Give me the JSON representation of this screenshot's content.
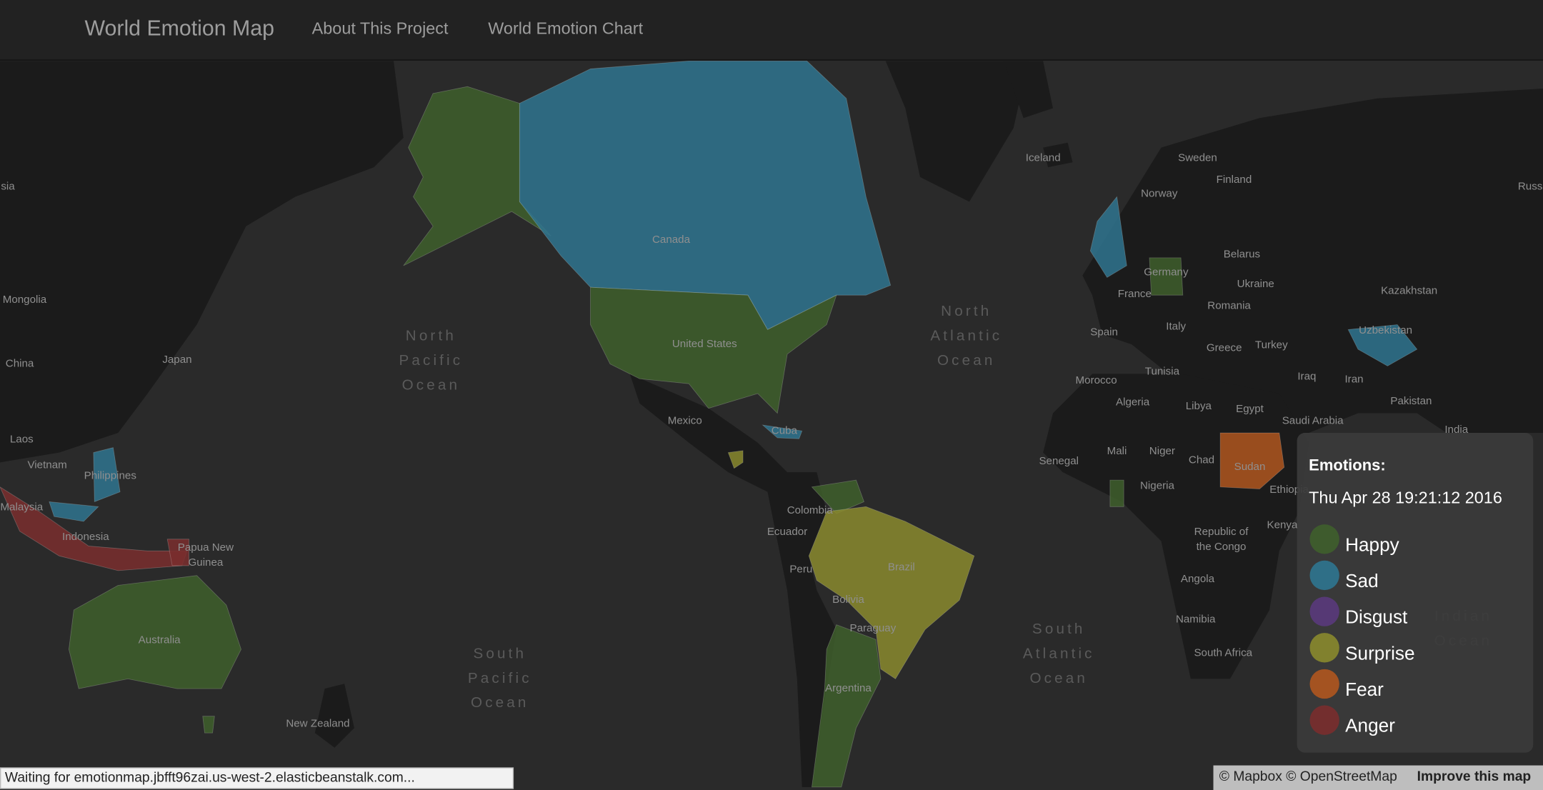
{
  "navbar": {
    "brand": "World Emotion Map",
    "links": [
      "About This Project",
      "World Emotion Chart"
    ]
  },
  "map": {
    "labels": [
      "sia",
      "Russ",
      "Iceland",
      "Sweden",
      "Finland",
      "Norway",
      "Belarus",
      "Germany",
      "Ukraine",
      "Kazakhstan",
      "France",
      "Romania",
      "Italy",
      "Spain",
      "Greece",
      "Turkey",
      "Uzbekistan",
      "Morocco",
      "Tunisia",
      "Iraq",
      "Iran",
      "Algeria",
      "Libya",
      "Egypt",
      "Pakistan",
      "Saudi Arabia",
      "India",
      "Mali",
      "Niger",
      "Chad",
      "Sudan",
      "Senegal",
      "Nigeria",
      "Ethiopia",
      "Kenya",
      "Angola",
      "Namibia",
      "South Africa",
      "Canada",
      "United States",
      "Mexico",
      "Cuba",
      "Colombia",
      "Ecuador",
      "Peru",
      "Brazil",
      "Bolivia",
      "Paraguay",
      "Argentina",
      "Mongolia",
      "China",
      "Japan",
      "Laos",
      "Vietnam",
      "Philippines",
      "Malaysia",
      "Indonesia",
      "Australia",
      "New Zealand"
    ],
    "multiline_labels": [
      [
        "Republic of",
        "the Congo"
      ],
      [
        "Papua New",
        "Guinea"
      ]
    ],
    "oceans": [
      [
        "North",
        "Pacific",
        "Ocean"
      ],
      [
        "North",
        "Atlantic",
        "Ocean"
      ],
      [
        "South",
        "Pacific",
        "Ocean"
      ],
      [
        "South",
        "Atlantic",
        "Ocean"
      ],
      [
        "Indian",
        "Ocean"
      ]
    ]
  },
  "legend": {
    "title": "Emotions:",
    "timestamp": "Thu Apr 28 19:21:12 2016",
    "items": [
      {
        "label": "Happy",
        "color": "#3f5f2c"
      },
      {
        "label": "Sad",
        "color": "#2f7590"
      },
      {
        "label": "Disgust",
        "color": "#5a3a7c"
      },
      {
        "label": "Surprise",
        "color": "#8a8a2e"
      },
      {
        "label": "Fear",
        "color": "#b0561f"
      },
      {
        "label": "Anger",
        "color": "#7a2e2e"
      }
    ]
  },
  "status": "Waiting for emotionmap.jbfft96zai.us-west-2.elasticbeanstalk.com...",
  "attribution": {
    "text": "© Mapbox © OpenStreetMap",
    "link": "Improve this map"
  }
}
